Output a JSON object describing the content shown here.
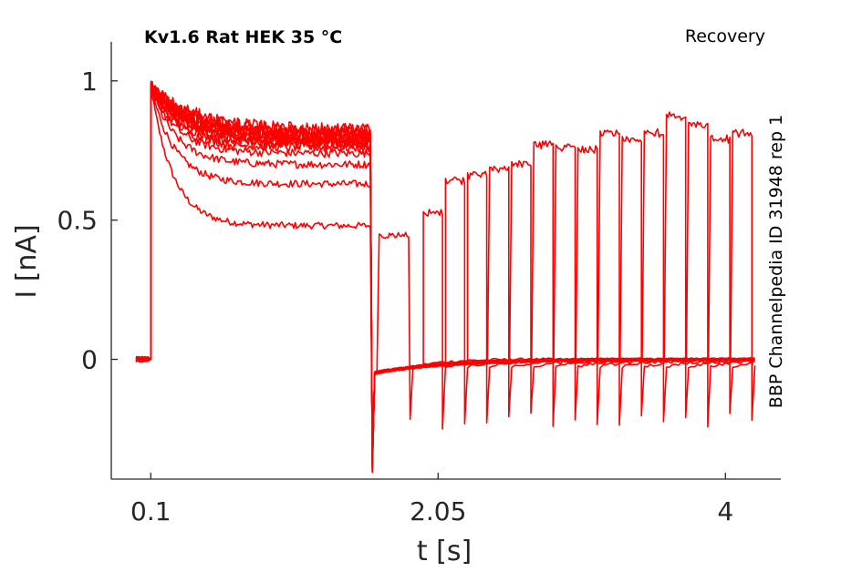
{
  "chart_data": {
    "type": "line",
    "title_left": "Kv1.6  Rat  HEK  35 °C",
    "title_right": "Recovery",
    "side_label": "BBP Channelpedia ID 31948 rep 1",
    "xlabel": "t [s]",
    "ylabel": "I [nA]",
    "x_ticks": [
      0.1,
      2.05,
      4
    ],
    "x_tick_labels": [
      "0.1",
      "2.05",
      "4"
    ],
    "y_ticks": [
      0,
      0.5,
      1
    ],
    "y_tick_labels": [
      "0",
      "0.5",
      "1"
    ],
    "xlim": [
      -0.168,
      4.376
    ],
    "ylim": [
      -0.43,
      1.14
    ],
    "grid": false,
    "line_color": "#ff0000",
    "protocol": {
      "pulse_on": 0.1,
      "pulse_off": 1.6,
      "baseline_end": 4.2
    },
    "series": [
      {
        "plateau": 0.48,
        "recovery_start": 1.65,
        "recovery_end": 1.86,
        "recovery_amp": 0.45
      },
      {
        "plateau": 0.63,
        "recovery_start": 1.95,
        "recovery_end": 2.08,
        "recovery_amp": 0.53
      },
      {
        "plateau": 0.7,
        "recovery_start": 2.1,
        "recovery_end": 2.23,
        "recovery_amp": 0.65
      },
      {
        "plateau": 0.74,
        "recovery_start": 2.25,
        "recovery_end": 2.38,
        "recovery_amp": 0.67
      },
      {
        "plateau": 0.76,
        "recovery_start": 2.4,
        "recovery_end": 2.53,
        "recovery_amp": 0.69
      },
      {
        "plateau": 0.77,
        "recovery_start": 2.55,
        "recovery_end": 2.68,
        "recovery_amp": 0.71
      },
      {
        "plateau": 0.78,
        "recovery_start": 2.7,
        "recovery_end": 2.83,
        "recovery_amp": 0.78
      },
      {
        "plateau": 0.78,
        "recovery_start": 2.85,
        "recovery_end": 2.98,
        "recovery_amp": 0.77
      },
      {
        "plateau": 0.79,
        "recovery_start": 3.0,
        "recovery_end": 3.13,
        "recovery_amp": 0.76
      },
      {
        "plateau": 0.79,
        "recovery_start": 3.15,
        "recovery_end": 3.28,
        "recovery_amp": 0.82
      },
      {
        "plateau": 0.8,
        "recovery_start": 3.3,
        "recovery_end": 3.43,
        "recovery_amp": 0.8
      },
      {
        "plateau": 0.8,
        "recovery_start": 3.45,
        "recovery_end": 3.58,
        "recovery_amp": 0.82
      },
      {
        "plateau": 0.81,
        "recovery_start": 3.6,
        "recovery_end": 3.73,
        "recovery_amp": 0.88
      },
      {
        "plateau": 0.81,
        "recovery_start": 3.75,
        "recovery_end": 3.88,
        "recovery_amp": 0.85
      },
      {
        "plateau": 0.82,
        "recovery_start": 3.9,
        "recovery_end": 4.03,
        "recovery_amp": 0.8
      },
      {
        "plateau": 0.82,
        "recovery_start": 4.05,
        "recovery_end": 4.18,
        "recovery_amp": 0.82
      }
    ]
  }
}
